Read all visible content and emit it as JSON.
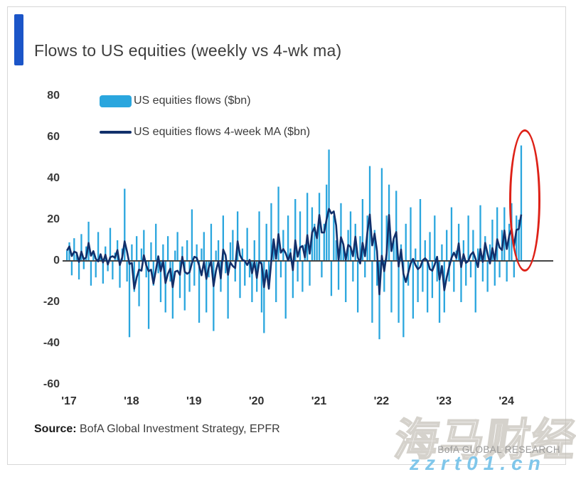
{
  "header": {
    "title": "Flows to US equities (weekly vs 4-wk ma)",
    "accent_color": "#1b55c8"
  },
  "legend": {
    "bars_label": "US equities flows ($bn)",
    "ma_label": "US equities flows 4-week MA ($bn)"
  },
  "footer": {
    "source_label": "Source:",
    "source_text": "BofA Global Investment Strategy, EPFR",
    "brand": "BofA GLOBAL RESEARCH"
  },
  "watermarks": {
    "cn_text": "海马财经",
    "url_text": "zzrt01.cn"
  },
  "annotations": {
    "highlight_ellipse_color": "#de2117",
    "highlight_note": "red ellipse circling the latest record inflow spike"
  },
  "chart_data": {
    "type": "bar",
    "title": "Flows to US equities (weekly vs 4-wk ma)",
    "xlabel": "",
    "ylabel": "",
    "ylim": [
      -60,
      80
    ],
    "y_ticks": [
      80,
      60,
      40,
      20,
      0,
      -20,
      -40,
      -60
    ],
    "x_tick_labels": [
      "'17",
      "'18",
      "'19",
      "'20",
      "'21",
      "'22",
      "'23",
      "'24"
    ],
    "grid": false,
    "legend_position": "top-left",
    "bar_color": "#2aa6de",
    "ma_color": "#12306b",
    "zero_line_color": "#444444",
    "series": [
      {
        "name": "US equities flows ($bn)",
        "type": "bar",
        "color": "#2aa6de",
        "sampling": "approx. bi-weekly estimates read from chart, Jan 2017 - Mar 2024, $bn",
        "values": [
          5,
          9,
          -7,
          11,
          3,
          -9,
          13,
          -4,
          7,
          19,
          -12,
          5,
          -8,
          14,
          2,
          -11,
          7,
          -5,
          16,
          -9,
          4,
          10,
          -13,
          6,
          35,
          -10,
          -37,
          8,
          -15,
          12,
          -22,
          6,
          15,
          -8,
          -33,
          9,
          -12,
          18,
          -6,
          -20,
          8,
          -25,
          12,
          -10,
          -28,
          5,
          14,
          -18,
          7,
          -24,
          10,
          -15,
          25,
          -12,
          8,
          -30,
          6,
          14,
          -25,
          -8,
          18,
          -34,
          5,
          10,
          -15,
          22,
          -6,
          -28,
          9,
          15,
          -10,
          24,
          -18,
          6,
          -12,
          16,
          -8,
          -20,
          10,
          -15,
          24,
          -25,
          -35,
          18,
          -12,
          28,
          8,
          -20,
          36,
          -8,
          15,
          -28,
          22,
          6,
          -18,
          30,
          -10,
          24,
          -15,
          8,
          33,
          -12,
          26,
          18,
          12,
          33,
          -8,
          18,
          37,
          54,
          -17,
          22,
          10,
          -14,
          28,
          8,
          -20,
          15,
          24,
          -10,
          18,
          -25,
          12,
          30,
          -8,
          22,
          46,
          -30,
          15,
          -12,
          -38,
          45,
          -15,
          22,
          37,
          -25,
          10,
          34,
          -30,
          8,
          -37,
          18,
          -12,
          26,
          -28,
          6,
          -20,
          30,
          -15,
          10,
          -25,
          14,
          -18,
          22,
          -10,
          -30,
          8,
          -25,
          15,
          -10,
          26,
          -15,
          5,
          18,
          -20,
          10,
          -12,
          22,
          -8,
          15,
          -25,
          6,
          27,
          -10,
          12,
          -15,
          8,
          20,
          -12,
          26,
          -8,
          15,
          26,
          -10,
          18,
          28,
          -8,
          22,
          20,
          56
        ]
      },
      {
        "name": "US equities flows 4-week MA ($bn)",
        "type": "line",
        "color": "#12306b",
        "derived_from": "values",
        "ma_window": 4
      }
    ]
  }
}
